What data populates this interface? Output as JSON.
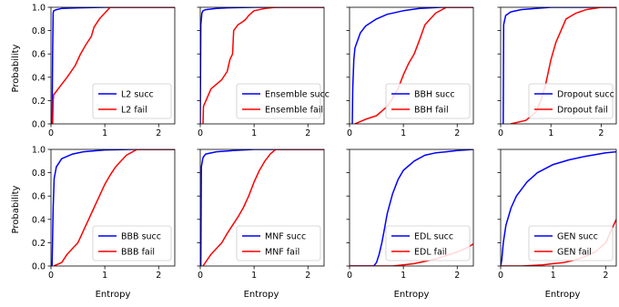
{
  "figure": {
    "ylabel": "Probability",
    "xlabel": "Entropy"
  },
  "colors": {
    "succ": "#0000ff",
    "fail": "#ff0000"
  },
  "chart_data": [
    {
      "type": "line",
      "panel": "L2",
      "xlim": [
        0,
        2.3
      ],
      "ylim": [
        0,
        1
      ],
      "xticks": [
        0,
        1,
        2
      ],
      "yticks": [
        0.0,
        0.2,
        0.4,
        0.6,
        0.8,
        1.0
      ],
      "legend_position": "lower-right",
      "series": [
        {
          "name": "L2 succ",
          "color": "#0000ff",
          "x": [
            0.02,
            0.03,
            0.04,
            0.05,
            0.1,
            0.2,
            0.5,
            1.0,
            2.3
          ],
          "y": [
            0.0,
            0.6,
            0.95,
            0.97,
            0.98,
            0.99,
            0.995,
            1.0,
            1.0
          ]
        },
        {
          "name": "L2 fail",
          "color": "#ff0000",
          "x": [
            0.03,
            0.04,
            0.05,
            0.15,
            0.3,
            0.45,
            0.55,
            0.65,
            0.75,
            0.8,
            0.9,
            1.0,
            1.1,
            2.3
          ],
          "y": [
            0.0,
            0.2,
            0.25,
            0.31,
            0.4,
            0.5,
            0.6,
            0.68,
            0.75,
            0.83,
            0.9,
            0.95,
            1.0,
            1.0
          ]
        }
      ]
    },
    {
      "type": "line",
      "panel": "Ensemble",
      "xlim": [
        0,
        2.3
      ],
      "ylim": [
        0,
        1
      ],
      "xticks": [
        0,
        1,
        2
      ],
      "yticks": [
        0.0,
        0.2,
        0.4,
        0.6,
        0.8,
        1.0
      ],
      "legend_position": "lower-right",
      "series": [
        {
          "name": "Ensemble succ",
          "color": "#0000ff",
          "x": [
            0.0,
            0.01,
            0.03,
            0.05,
            0.1,
            0.3,
            0.5,
            1.0,
            2.3
          ],
          "y": [
            0.0,
            0.85,
            0.95,
            0.97,
            0.98,
            0.99,
            0.995,
            1.0,
            1.0
          ]
        },
        {
          "name": "Ensemble fail",
          "color": "#ff0000",
          "x": [
            0.05,
            0.06,
            0.2,
            0.4,
            0.5,
            0.55,
            0.6,
            0.62,
            0.7,
            0.8,
            0.85,
            0.9,
            1.0,
            1.2,
            1.4,
            2.3
          ],
          "y": [
            0.0,
            0.15,
            0.3,
            0.38,
            0.45,
            0.55,
            0.6,
            0.8,
            0.85,
            0.88,
            0.9,
            0.93,
            0.97,
            0.99,
            1.0,
            1.0
          ]
        }
      ]
    },
    {
      "type": "line",
      "panel": "BBH",
      "xlim": [
        0,
        2.3
      ],
      "ylim": [
        0,
        1
      ],
      "xticks": [
        0,
        1,
        2
      ],
      "yticks": [
        0.0,
        0.2,
        0.4,
        0.6,
        0.8,
        1.0
      ],
      "legend_position": "lower-right",
      "series": [
        {
          "name": "BBH succ",
          "color": "#0000ff",
          "x": [
            0.05,
            0.06,
            0.08,
            0.1,
            0.2,
            0.3,
            0.5,
            0.7,
            1.0,
            1.3,
            1.7,
            2.3
          ],
          "y": [
            0.0,
            0.3,
            0.55,
            0.65,
            0.78,
            0.84,
            0.9,
            0.94,
            0.97,
            0.99,
            1.0,
            1.0
          ]
        },
        {
          "name": "BBH fail",
          "color": "#ff0000",
          "x": [
            0.1,
            0.3,
            0.5,
            0.7,
            0.8,
            0.9,
            1.0,
            1.1,
            1.2,
            1.3,
            1.4,
            1.5,
            1.6,
            1.8,
            2.3
          ],
          "y": [
            0.0,
            0.04,
            0.07,
            0.15,
            0.22,
            0.3,
            0.42,
            0.52,
            0.6,
            0.72,
            0.85,
            0.9,
            0.95,
            1.0,
            1.0
          ]
        }
      ]
    },
    {
      "type": "line",
      "panel": "Dropout",
      "xlim": [
        0,
        2.3
      ],
      "ylim": [
        0,
        1
      ],
      "xticks": [
        0,
        1,
        2
      ],
      "yticks": [
        0.0,
        0.2,
        0.4,
        0.6,
        0.8,
        1.0
      ],
      "legend_position": "lower-right",
      "series": [
        {
          "name": "Dropout succ",
          "color": "#0000ff",
          "x": [
            0.05,
            0.06,
            0.1,
            0.2,
            0.4,
            0.7,
            1.0,
            2.3
          ],
          "y": [
            0.0,
            0.85,
            0.93,
            0.96,
            0.98,
            0.99,
            1.0,
            1.0
          ]
        },
        {
          "name": "Dropout fail",
          "color": "#ff0000",
          "x": [
            0.2,
            0.5,
            0.7,
            0.8,
            0.9,
            1.0,
            1.1,
            1.2,
            1.3,
            1.5,
            1.7,
            2.0,
            2.3
          ],
          "y": [
            0.0,
            0.03,
            0.1,
            0.2,
            0.35,
            0.55,
            0.7,
            0.8,
            0.9,
            0.95,
            0.98,
            1.0,
            1.0
          ]
        }
      ]
    },
    {
      "type": "line",
      "panel": "BBB",
      "xlim": [
        0,
        2.3
      ],
      "ylim": [
        0,
        1
      ],
      "xticks": [
        0,
        1,
        2
      ],
      "yticks": [
        0.0,
        0.2,
        0.4,
        0.6,
        0.8,
        1.0
      ],
      "legend_position": "lower-right",
      "series": [
        {
          "name": "BBB succ",
          "color": "#0000ff",
          "x": [
            0.02,
            0.04,
            0.06,
            0.08,
            0.1,
            0.2,
            0.4,
            0.6,
            1.0,
            1.5,
            2.3
          ],
          "y": [
            0.0,
            0.5,
            0.75,
            0.8,
            0.85,
            0.92,
            0.96,
            0.98,
            0.995,
            1.0,
            1.0
          ]
        },
        {
          "name": "BBB fail",
          "color": "#ff0000",
          "x": [
            0.05,
            0.2,
            0.3,
            0.5,
            0.6,
            0.7,
            0.8,
            0.9,
            1.0,
            1.1,
            1.2,
            1.3,
            1.4,
            1.6,
            2.3
          ],
          "y": [
            0.0,
            0.03,
            0.1,
            0.2,
            0.3,
            0.4,
            0.5,
            0.6,
            0.7,
            0.78,
            0.85,
            0.9,
            0.95,
            1.0,
            1.0
          ]
        }
      ]
    },
    {
      "type": "line",
      "panel": "MNF",
      "xlim": [
        0,
        2.3
      ],
      "ylim": [
        0,
        1
      ],
      "xticks": [
        0,
        1,
        2
      ],
      "yticks": [
        0.0,
        0.2,
        0.4,
        0.6,
        0.8,
        1.0
      ],
      "legend_position": "lower-right",
      "series": [
        {
          "name": "MNF succ",
          "color": "#0000ff",
          "x": [
            0.01,
            0.02,
            0.05,
            0.1,
            0.3,
            0.6,
            1.0,
            2.3
          ],
          "y": [
            0.0,
            0.85,
            0.93,
            0.96,
            0.98,
            0.99,
            1.0,
            1.0
          ]
        },
        {
          "name": "MNF fail",
          "color": "#ff0000",
          "x": [
            0.05,
            0.2,
            0.4,
            0.5,
            0.6,
            0.7,
            0.8,
            0.9,
            1.0,
            1.1,
            1.2,
            1.3,
            1.4,
            2.3
          ],
          "y": [
            0.0,
            0.1,
            0.2,
            0.28,
            0.35,
            0.42,
            0.5,
            0.6,
            0.72,
            0.82,
            0.9,
            0.96,
            1.0,
            1.0
          ]
        }
      ]
    },
    {
      "type": "line",
      "panel": "EDL",
      "xlim": [
        0,
        2.3
      ],
      "ylim": [
        0,
        1
      ],
      "xticks": [
        0,
        1,
        2
      ],
      "yticks": [
        0.0,
        0.2,
        0.4,
        0.6,
        0.8,
        1.0
      ],
      "legend_position": "lower-right",
      "series": [
        {
          "name": "EDL succ",
          "color": "#0000ff",
          "x": [
            0.0,
            0.45,
            0.5,
            0.55,
            0.6,
            0.65,
            0.7,
            0.8,
            0.9,
            1.0,
            1.2,
            1.4,
            1.6,
            1.8,
            2.0,
            2.3
          ],
          "y": [
            0.0,
            0.0,
            0.03,
            0.1,
            0.2,
            0.32,
            0.45,
            0.62,
            0.74,
            0.82,
            0.9,
            0.95,
            0.97,
            0.98,
            0.99,
            1.0
          ]
        },
        {
          "name": "EDL fail",
          "color": "#ff0000",
          "x": [
            0.0,
            0.8,
            1.0,
            1.2,
            1.4,
            1.6,
            1.8,
            2.0,
            2.2,
            2.3
          ],
          "y": [
            0.0,
            0.0,
            0.01,
            0.02,
            0.04,
            0.06,
            0.09,
            0.12,
            0.16,
            0.19
          ]
        }
      ]
    },
    {
      "type": "line",
      "panel": "GEN",
      "xlim": [
        0,
        2.2
      ],
      "ylim": [
        0,
        1
      ],
      "xticks": [
        0,
        1,
        2
      ],
      "yticks": [
        0.0,
        0.2,
        0.4,
        0.6,
        0.8,
        1.0
      ],
      "legend_position": "lower-right",
      "series": [
        {
          "name": "GEN succ",
          "color": "#0000ff",
          "x": [
            0.0,
            0.02,
            0.05,
            0.1,
            0.2,
            0.3,
            0.5,
            0.7,
            1.0,
            1.3,
            1.6,
            2.0,
            2.2
          ],
          "y": [
            0.0,
            0.05,
            0.2,
            0.35,
            0.5,
            0.6,
            0.72,
            0.8,
            0.87,
            0.91,
            0.94,
            0.97,
            0.98
          ]
        },
        {
          "name": "GEN fail",
          "color": "#ff0000",
          "x": [
            0.0,
            0.4,
            0.8,
            1.0,
            1.2,
            1.4,
            1.6,
            1.8,
            2.0,
            2.1,
            2.2
          ],
          "y": [
            0.0,
            0.0,
            0.01,
            0.02,
            0.03,
            0.05,
            0.08,
            0.12,
            0.2,
            0.3,
            0.4
          ]
        }
      ]
    }
  ]
}
